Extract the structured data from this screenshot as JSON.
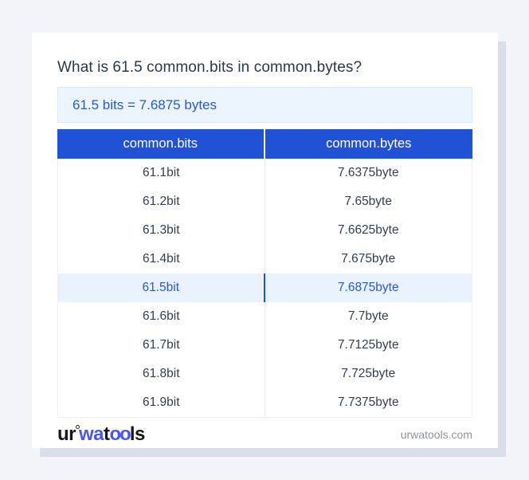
{
  "card": {
    "title": "What is 61.5 common.bits in common.bytes?",
    "answer": "61.5 bits = 7.6875 bytes"
  },
  "table": {
    "headers": [
      "common.bits",
      "common.bytes"
    ],
    "rows": [
      {
        "bits": "61.1bit",
        "bytes": "7.6375byte",
        "highlight": false
      },
      {
        "bits": "61.2bit",
        "bytes": "7.65byte",
        "highlight": false
      },
      {
        "bits": "61.3bit",
        "bytes": "7.6625byte",
        "highlight": false
      },
      {
        "bits": "61.4bit",
        "bytes": "7.675byte",
        "highlight": false
      },
      {
        "bits": "61.5bit",
        "bytes": "7.6875byte",
        "highlight": true
      },
      {
        "bits": "61.6bit",
        "bytes": "7.7byte",
        "highlight": false
      },
      {
        "bits": "61.7bit",
        "bytes": "7.7125byte",
        "highlight": false
      },
      {
        "bits": "61.8bit",
        "bytes": "7.725byte",
        "highlight": false
      },
      {
        "bits": "61.9bit",
        "bytes": "7.7375byte",
        "highlight": false
      }
    ]
  },
  "footer": {
    "logo": {
      "seg1": "ur",
      "seg2": "wa",
      "seg3": "t",
      "seg4": "oo",
      "seg5": "ls"
    },
    "domain": "urwatools.com"
  },
  "colors": {
    "page_background": "#f3f4f9",
    "card_shadow": "#d9deea",
    "header_blue": "#2151d4",
    "answer_blue": "#2b5ac2",
    "answer_background": "#ecf4fd",
    "highlight_background": "#eaf3fd",
    "logo_blue": "#4a56f0",
    "text_dark": "#2d3847"
  }
}
